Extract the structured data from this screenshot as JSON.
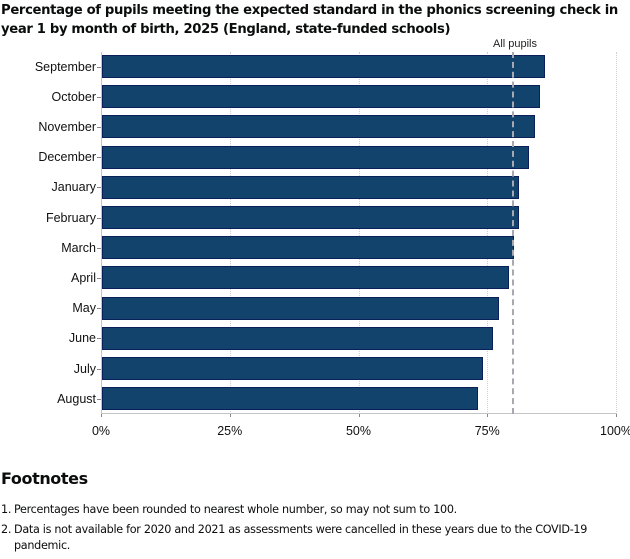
{
  "chart_data": {
    "type": "bar",
    "orientation": "horizontal",
    "title": "Percentage of pupils meeting the expected standard in the phonics screening check in year 1 by month of birth, 2025 (England, state-funded schools)",
    "categories": [
      "September",
      "October",
      "November",
      "December",
      "January",
      "February",
      "March",
      "April",
      "May",
      "June",
      "July",
      "August"
    ],
    "values": [
      86,
      85,
      84,
      83,
      81,
      81,
      80,
      79,
      77,
      76,
      74,
      73
    ],
    "reference_line": {
      "label": "All pupils",
      "value": 80
    },
    "xlabel": "",
    "ylabel": "",
    "xlim": [
      0,
      100
    ],
    "x_ticks": [
      "0%",
      "25%",
      "50%",
      "75%",
      "100%"
    ],
    "x_tick_values": [
      0,
      25,
      50,
      75,
      100
    ],
    "grid": true,
    "bar_color": "#12436d",
    "bar_border_color": "#0b1f5a",
    "reference_line_color": "#a8a8b0"
  },
  "footnotes": {
    "heading": "Footnotes",
    "items": [
      {
        "num": "1.",
        "text": "Percentages have been rounded to nearest whole number, so may not sum to 100."
      },
      {
        "num": "2.",
        "text": "Data is not available for 2020 and 2021 as assessments were cancelled in these years due to the COVID-19 pandemic."
      }
    ]
  }
}
